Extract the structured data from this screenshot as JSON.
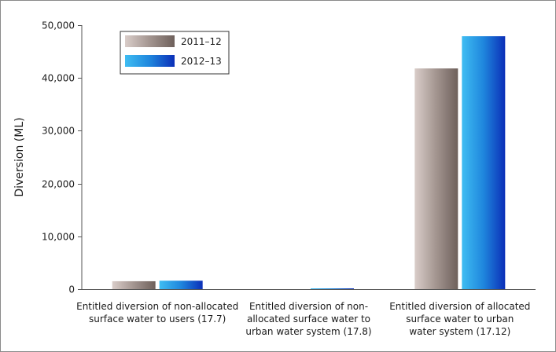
{
  "chart_data": {
    "type": "bar",
    "title": "",
    "xlabel": "",
    "ylabel": "Diversion (ML)",
    "ylim": [
      0,
      50000
    ],
    "yticks": [
      0,
      10000,
      20000,
      30000,
      40000,
      50000
    ],
    "ytick_labels": [
      "0",
      "10,000",
      "20,000",
      "30,000",
      "40,000",
      "50,000"
    ],
    "categories": [
      [
        "Entitled diversion of non-allocated",
        "surface water to users (17.7)"
      ],
      [
        "Entitled diversion of non-",
        "allocated surface water to",
        "urban water system (17.8)"
      ],
      [
        "Entitled diversion of allocated",
        "surface water to urban",
        "water system (17.12)"
      ]
    ],
    "series": [
      {
        "name": "2011–12",
        "values": [
          1500,
          0,
          41800
        ]
      },
      {
        "name": "2012–13",
        "values": [
          1600,
          150,
          47900
        ]
      }
    ],
    "legend_placement": "top-left",
    "grid": false
  }
}
